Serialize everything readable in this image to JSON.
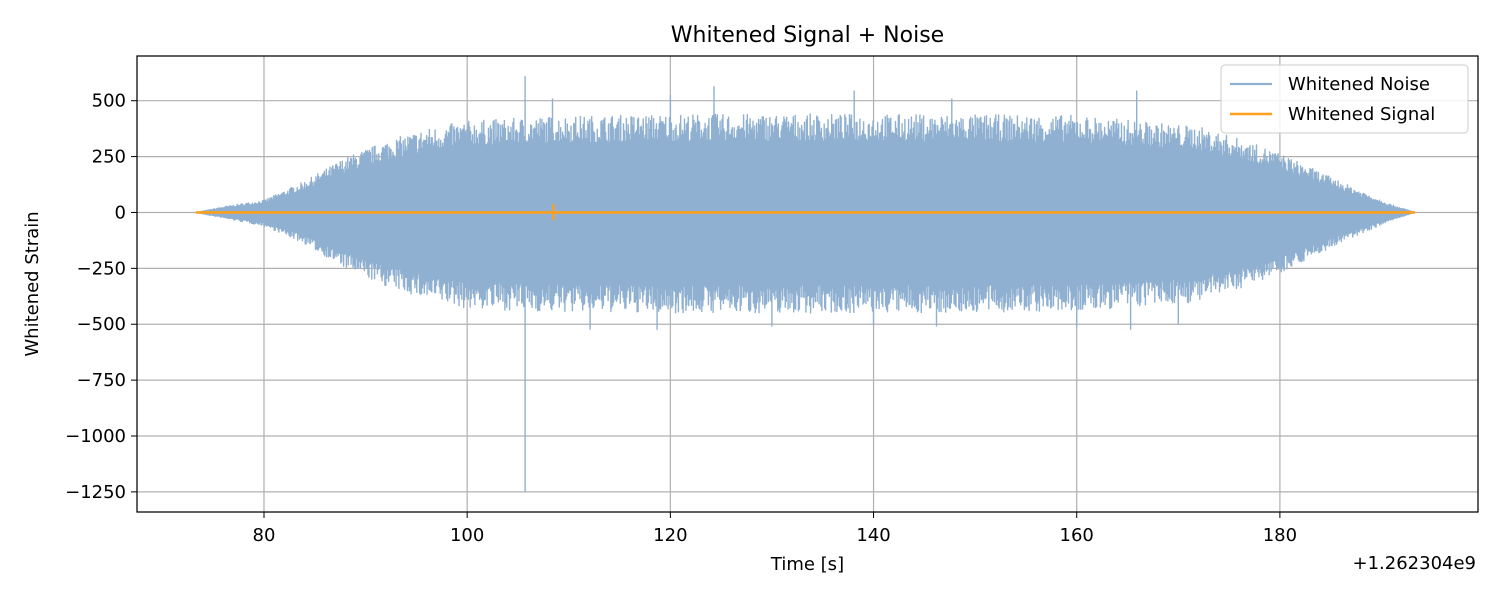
{
  "chart_data": {
    "type": "line",
    "title": "Whitened Signal + Noise",
    "xlabel": "Time [s]",
    "ylabel": "Whitened Strain",
    "x_offset_label": "+1.262304e9",
    "xlim": [
      67.5,
      199.5
    ],
    "ylim": [
      -1340,
      700
    ],
    "x_ticks": [
      80,
      100,
      120,
      140,
      160,
      180
    ],
    "y_ticks": [
      500,
      250,
      0,
      -250,
      -500,
      -750,
      -1000,
      -1250
    ],
    "y_tick_labels": [
      "500",
      "250",
      "0",
      "−250",
      "−500",
      "−750",
      "−1000",
      "−1250"
    ],
    "grid": true,
    "legend_position": "top-right",
    "series": [
      {
        "name": "Whitened Noise",
        "color": "#8fb0d0",
        "x_range": [
          73.3,
          193.3
        ],
        "envelope": {
          "x": [
            73.3,
            76,
            80,
            84,
            88,
            92,
            96,
            100,
            108,
            120,
            140,
            160,
            172,
            176,
            180,
            184,
            188,
            191,
            193.3
          ],
          "upper": [
            0,
            25,
            55,
            140,
            245,
            320,
            375,
            410,
            430,
            440,
            440,
            435,
            385,
            330,
            265,
            180,
            95,
            35,
            0
          ],
          "lower": [
            0,
            -25,
            -60,
            -140,
            -250,
            -330,
            -390,
            -430,
            -445,
            -450,
            -450,
            -445,
            -400,
            -340,
            -270,
            -180,
            -95,
            -35,
            0
          ]
        },
        "spikes": [
          {
            "x": 105.7,
            "y": 610
          },
          {
            "x": 105.7,
            "y": -1250
          },
          {
            "x": 108.4,
            "y": 510
          },
          {
            "x": 120.0,
            "y": 525
          },
          {
            "x": 124.3,
            "y": 565
          },
          {
            "x": 138.1,
            "y": 545
          },
          {
            "x": 147.7,
            "y": 510
          },
          {
            "x": 165.9,
            "y": 545
          },
          {
            "x": 112.1,
            "y": -525
          },
          {
            "x": 118.7,
            "y": -525
          },
          {
            "x": 130.0,
            "y": -510
          },
          {
            "x": 140.0,
            "y": -505
          },
          {
            "x": 146.2,
            "y": -510
          },
          {
            "x": 160.0,
            "y": -510
          },
          {
            "x": 165.3,
            "y": -525
          },
          {
            "x": 170.0,
            "y": -500
          }
        ]
      },
      {
        "name": "Whitened Signal",
        "color": "#ff9f1c",
        "x_range": [
          73.3,
          193.3
        ],
        "value": 0,
        "burst": {
          "x": 108.5,
          "ymin": -35,
          "ymax": 38
        }
      }
    ]
  }
}
